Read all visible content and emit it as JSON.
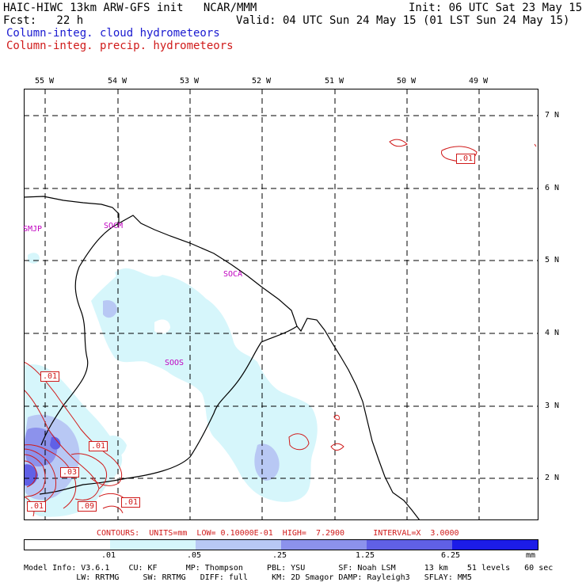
{
  "header": {
    "title": "HAIC-HIWC 13km ARW-GFS init   NCAR/MMM",
    "init": "Init: 06 UTC Sat 23 May 15",
    "fcst": "Fcst:   22 h",
    "valid": "Valid: 04 UTC Sun 24 May 15 (01 LST Sun 24 May 15)",
    "field_cloud": "Column-integ. cloud hydrometeors",
    "field_precip": "Column-integ. precip. hydrometeors"
  },
  "colors": {
    "cloud_label": "#1a1ad0",
    "precip_label": "#d01a1a",
    "shade_1": "#d6f6fb",
    "shade_2": "#b8c8f4",
    "shade_3": "#8c92ec",
    "shade_4": "#6060e6",
    "shade_5": "#1c1ce8",
    "contour": "#d01a1a",
    "station": "#c000c0"
  },
  "axes": {
    "lon_labels": [
      "55 W",
      "54 W",
      "53 W",
      "52 W",
      "51 W",
      "50 W",
      "49 W"
    ],
    "lat_labels": [
      "7 N",
      "6 N",
      "5 N",
      "4 N",
      "3 N",
      "2 N"
    ]
  },
  "stations": [
    "SMJP",
    "SOCM",
    "SOCA",
    "SOOS"
  ],
  "contour_labels": [
    ".01",
    ".01",
    ".01",
    ".03",
    ".01",
    ".09",
    ".01"
  ],
  "contour_info": "CONTOURS:  UNITS=mm  LOW= 0.10000E-01  HIGH=  7.2900      INTERVAL=X  3.0000",
  "colorbar": {
    "labels": [
      ".01",
      ".05",
      ".25",
      "1.25",
      "6.25"
    ],
    "unit": "mm"
  },
  "footer": {
    "line1": "Model Info: V3.6.1    CU: KF      MP: Thompson     PBL: YSU       SF: Noah LSM      13 km    51 levels   60 sec",
    "line2": "           LW: RRTMG     SW: RRTMG   DIFF: full     KM: 2D Smagor DAMP: Rayleigh3   SFLAY: MM5"
  }
}
